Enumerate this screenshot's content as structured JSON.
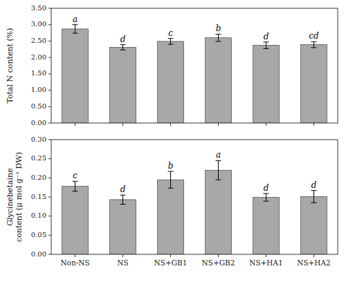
{
  "chart_data": [
    {
      "type": "bar",
      "categories": [
        null,
        null,
        null,
        null,
        null,
        null
      ],
      "values": [
        2.87,
        2.31,
        2.49,
        2.6,
        2.37,
        2.39
      ],
      "errors": [
        0.13,
        0.08,
        0.09,
        0.11,
        0.1,
        0.09
      ],
      "annotations": [
        "a",
        "d",
        "c",
        "b",
        "d",
        "cd"
      ],
      "y_label": "Total N content (%)",
      "ylim": [
        0.0,
        3.5
      ],
      "yticks": [
        {
          "value": 0.0,
          "label": "0.00"
        },
        {
          "value": 0.5,
          "label": "0.50"
        },
        {
          "value": 1.0,
          "label": "1.00"
        },
        {
          "value": 1.5,
          "label": "1.50"
        },
        {
          "value": 2.0,
          "label": "2.00"
        },
        {
          "value": 2.5,
          "label": "2.50"
        },
        {
          "value": 3.0,
          "label": "3.00"
        },
        {
          "value": 3.5,
          "label": "3.50"
        }
      ],
      "color": "#a8a8a8",
      "grid": false
    },
    {
      "type": "bar",
      "categories": [
        "Non-NS",
        "NS",
        "NS+GB1",
        "NS+GB2",
        "NS+HA1",
        "NS+HA2"
      ],
      "values": [
        0.178,
        0.143,
        0.195,
        0.22,
        0.149,
        0.151
      ],
      "errors": [
        0.013,
        0.012,
        0.022,
        0.025,
        0.01,
        0.016
      ],
      "annotations": [
        "c",
        "d",
        "b",
        "a",
        "d",
        "d"
      ],
      "y_label": "Glycinebetaine\ncontent (μ mol g⁻¹ DW)",
      "ylim": [
        0.0,
        0.3
      ],
      "yticks": [
        {
          "value": 0.0,
          "label": "0.00"
        },
        0.05,
        {
          "value": 0.1,
          "label": "0.10"
        },
        0.15,
        {
          "value": 0.2,
          "label": "0.20"
        },
        0.25,
        {
          "value": 0.3,
          "label": "0.30"
        }
      ],
      "color": "#a8a8a8",
      "grid": false
    }
  ]
}
